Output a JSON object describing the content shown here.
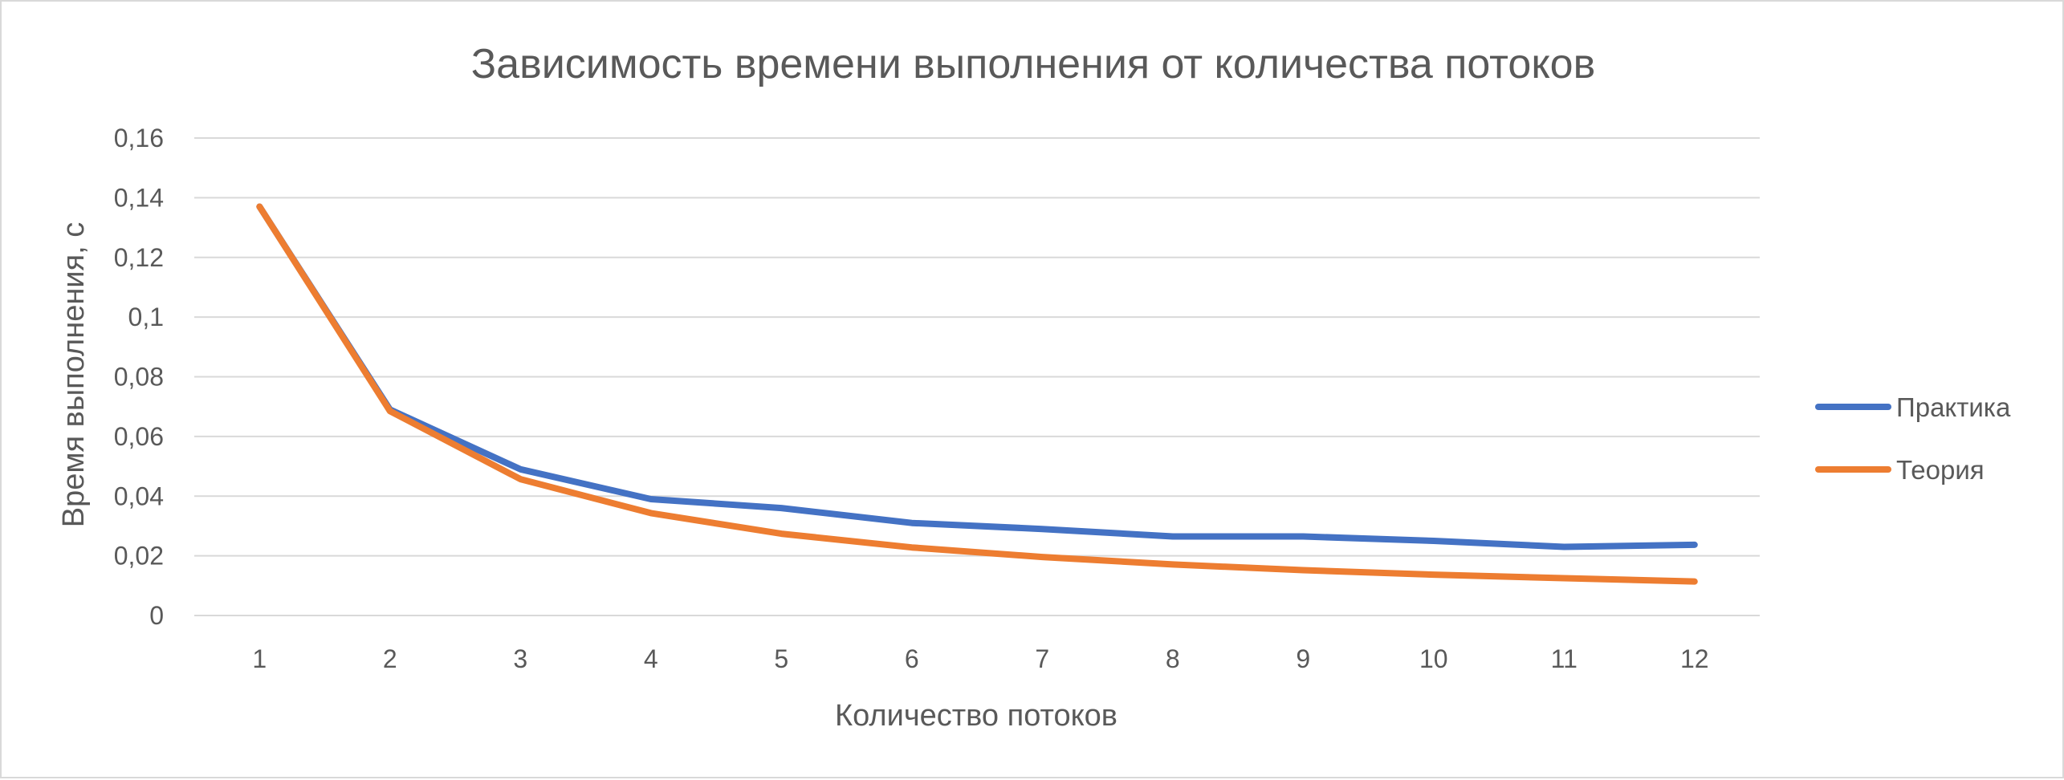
{
  "chart_data": {
    "type": "line",
    "title": "Зависимость времени выполнения от количества потоков",
    "xlabel": "Количество потоков",
    "ylabel": "Время выполнения, с",
    "categories": [
      "1",
      "2",
      "3",
      "4",
      "5",
      "6",
      "7",
      "8",
      "9",
      "10",
      "11",
      "12"
    ],
    "y_ticks": [
      "0",
      "0,02",
      "0,04",
      "0,06",
      "0,08",
      "0,1",
      "0,12",
      "0,14",
      "0,16"
    ],
    "ylim": [
      0,
      0.16
    ],
    "grid": true,
    "legend_position": "right",
    "series": [
      {
        "name": "Практика",
        "color": "#4472c4",
        "values": [
          0.137,
          0.069,
          0.049,
          0.039,
          0.036,
          0.031,
          0.029,
          0.0265,
          0.0265,
          0.025,
          0.023,
          0.0237
        ]
      },
      {
        "name": "Теория",
        "color": "#ed7d31",
        "values": [
          0.137,
          0.0685,
          0.0457,
          0.0343,
          0.0274,
          0.0228,
          0.0196,
          0.0171,
          0.0152,
          0.0137,
          0.0125,
          0.0114
        ]
      }
    ]
  }
}
